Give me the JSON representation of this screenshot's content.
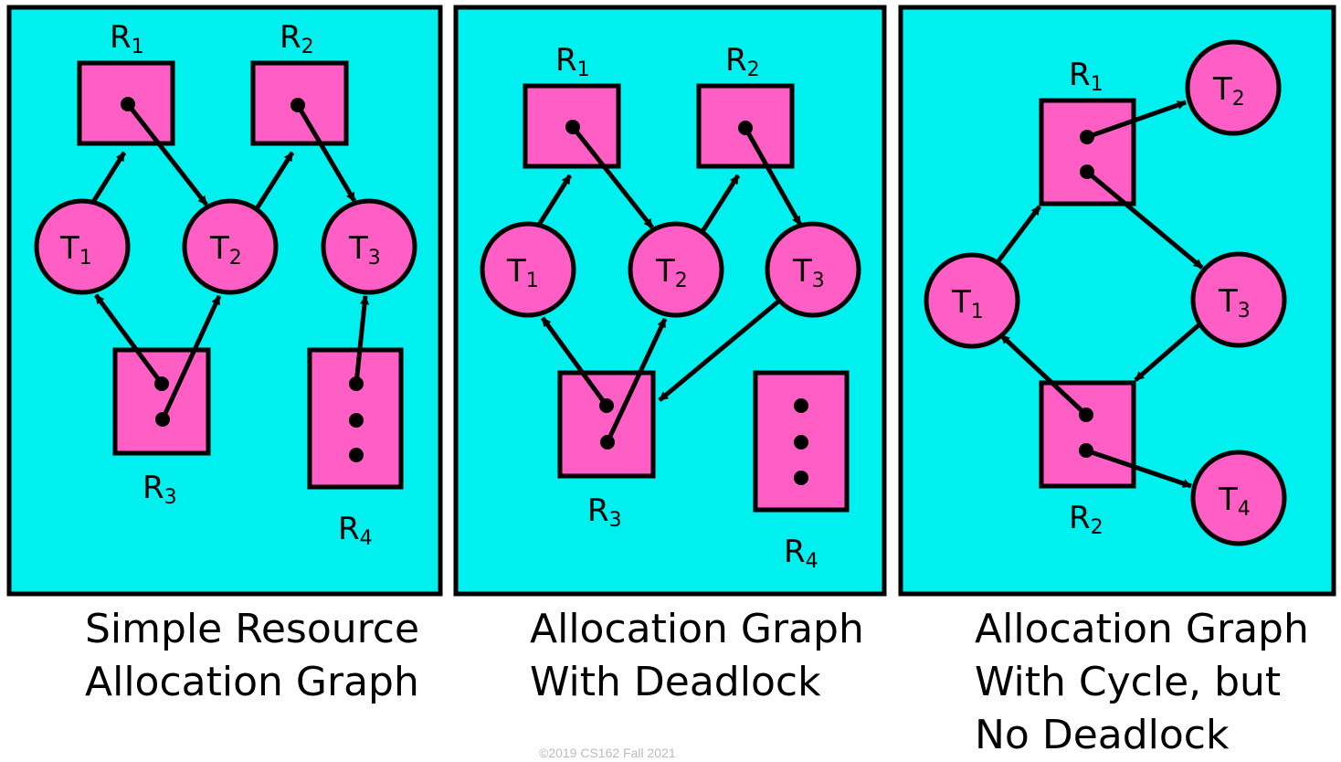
{
  "colors": {
    "panel": "#00f0f0",
    "node": "#ff5ec4",
    "stroke": "#000000"
  },
  "panels": [
    {
      "caption": [
        "Simple Resource",
        "Allocation Graph"
      ]
    },
    {
      "caption": [
        "Allocation Graph",
        "With Deadlock"
      ]
    },
    {
      "caption": [
        "Allocation Graph",
        "With Cycle, but",
        "No Deadlock"
      ]
    }
  ],
  "labels": {
    "R": "R",
    "T": "T",
    "sub1": "1",
    "sub2": "2",
    "sub3": "3",
    "sub4": "4"
  },
  "footer": "©2019 CS162 Fall 2021"
}
